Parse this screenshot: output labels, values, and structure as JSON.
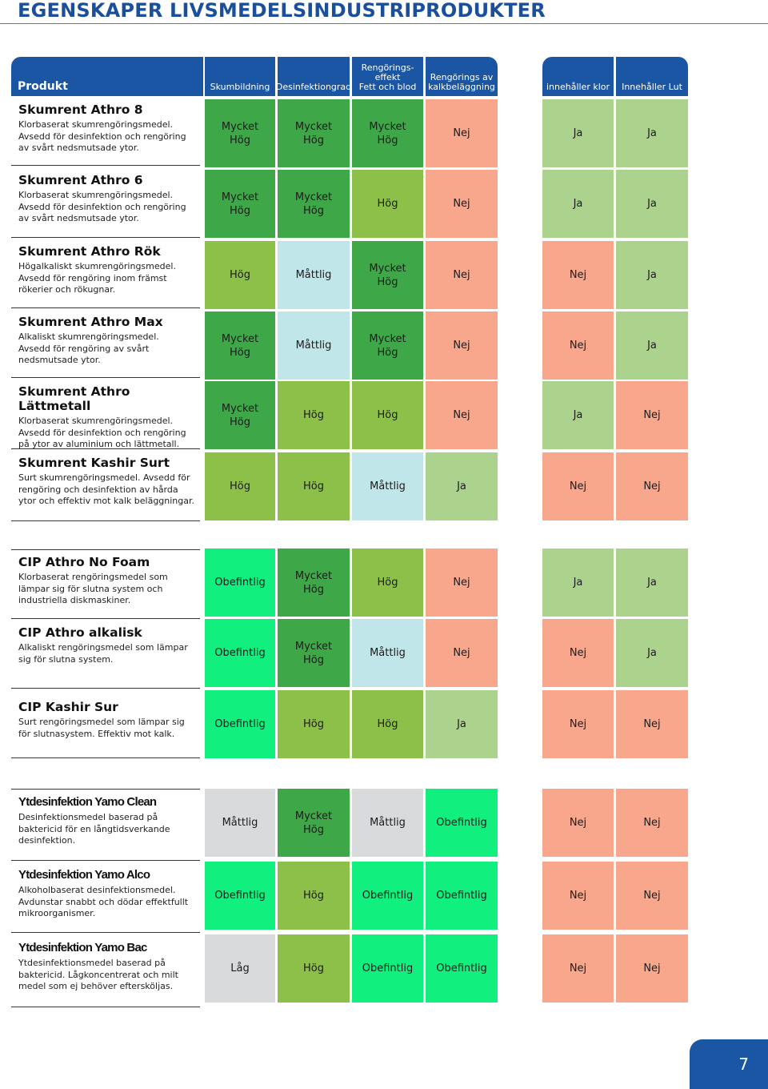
{
  "title": "EGENSKAPER LIVSMEDELSINDUSTRIPRODUKTER",
  "headers": [
    "Produkt",
    "Skumbildning",
    "Desinfektiongrad",
    "Rengörings-\neffekt\nFett och blod",
    "Rengörings av\nkalkbeläggning",
    "innehåller klor",
    "Innehåller Lut"
  ],
  "colors": {
    "header_blue": "#1a56a3",
    "mycket_hog": "#3ea849",
    "hog": "#8dc048",
    "mattlig": "#c1e6ea",
    "obefintlig": "#11f07e",
    "mattlig_gray": "#d9dadc",
    "lag": "#d9dadc",
    "ja": "#acd38d",
    "nej": "#f8a78d"
  },
  "products": [
    {
      "name": "Skumrent Athro 8",
      "description": "Klorbaserat skumrengöringsmedel.\nAvsedd för desinfektion och rengöring\nav svårt  nedsmutsade ytor.",
      "values": [
        "Mycket\nHög",
        "Mycket\nHög",
        "Mycket\nHög",
        "Nej",
        "Ja",
        "Ja"
      ]
    },
    {
      "name": "Skumrent Athro 6",
      "description": "Klorbaserat skumrengöringsmedel.\nAvsedd för desinfektion och rengöring\nav svårt  nedsmutsade ytor.",
      "values": [
        "Mycket\nHög",
        "Mycket\nHög",
        "Hög",
        "Nej",
        "Ja",
        "Ja"
      ]
    },
    {
      "name": "Skumrent Athro Rök",
      "description": "Högalkaliskt skumrengöringsmedel.\nAvsedd för rengöring inom främst\nrökerier och rökugnar.",
      "values": [
        "Hög",
        "Måttlig",
        "Mycket\nHög",
        "Nej",
        "Nej",
        "Ja"
      ]
    },
    {
      "name": "Skumrent Athro Max",
      "description": "Alkaliskt skumrengöringsmedel.\nAvsedd för rengöring av svårt\nnedsmutsade ytor.",
      "values": [
        "Mycket\nHög",
        "Måttlig",
        "Mycket\nHög",
        "Nej",
        "Nej",
        "Ja"
      ]
    },
    {
      "name": "Skumrent Athro Lättmetall",
      "description": "Klorbaserat skumrengöringsmedel.\nAvsedd för desinfektion och rengöring\npå ytor  av aluminium och lättmetall.",
      "values": [
        "Mycket\nHög",
        "Hög",
        "Hög",
        "Nej",
        "Ja",
        "Nej"
      ]
    },
    {
      "name": "Skumrent Kashir Surt",
      "description": "Surt skumrengöringsmedel. Avsedd för\nrengöring och desinfektion av hårda\nytor och effektiv mot kalk beläggningar.",
      "values": [
        "Hög",
        "Hög",
        "Måttlig",
        "Ja",
        "Nej",
        "Nej"
      ]
    },
    {
      "name": "CIP Athro No Foam",
      "description": "Klorbaserat rengöringsmedel som\nlämpar sig för slutna system och\nindustriella diskmaskiner.",
      "values": [
        "Obefintlig",
        "Mycket\nHög",
        "Hög",
        "Nej",
        "Ja",
        "Ja"
      ]
    },
    {
      "name": "CIP Athro alkalisk",
      "description": "Alkaliskt rengöringsmedel som lämpar\nsig för slutna system.",
      "values": [
        "Obefintlig",
        "Mycket\nHög",
        "Måttlig",
        "Nej",
        "Nej",
        "Ja"
      ]
    },
    {
      "name": "CIP Kashir Sur",
      "description": "Surt rengöringsmedel som lämpar sig\nför slutnasystem. Effektiv mot kalk.",
      "values": [
        "Obefintlig",
        "Hög",
        "Hög",
        "Ja",
        "Nej",
        "Nej"
      ]
    },
    {
      "name": "Ytdesinfektion Yamo Clean",
      "description": "Desinfektionsmedel baserad på\nbaktericid för en långtidsverkande\ndesinfektion.",
      "values": [
        "Måttlig",
        "Mycket\nHög",
        "Måttlig",
        "Obefintlig",
        "Nej",
        "Nej"
      ]
    },
    {
      "name": "Ytdesinfektion Yamo Alco",
      "description": "Alkoholbaserat desinfektionsmedel.\nAvdunstar snabbt och dödar effektfullt\nmikroorganismer.",
      "values": [
        "Obefintlig",
        "Hög",
        "Obefintlig",
        "Obefintlig",
        "Nej",
        "Nej"
      ]
    },
    {
      "name": "Ytdesinfektion Yamo Bac",
      "description": "Ytdesinfektionsmedel baserad på\nbaktericid. Lågkoncentrerat och milt\nmedel som ej behöver efterskölјas.",
      "values": [
        "Låg",
        "Hög",
        "Obefintlig",
        "Obefintlig",
        "Nej",
        "Nej"
      ]
    }
  ],
  "page_number": "7"
}
